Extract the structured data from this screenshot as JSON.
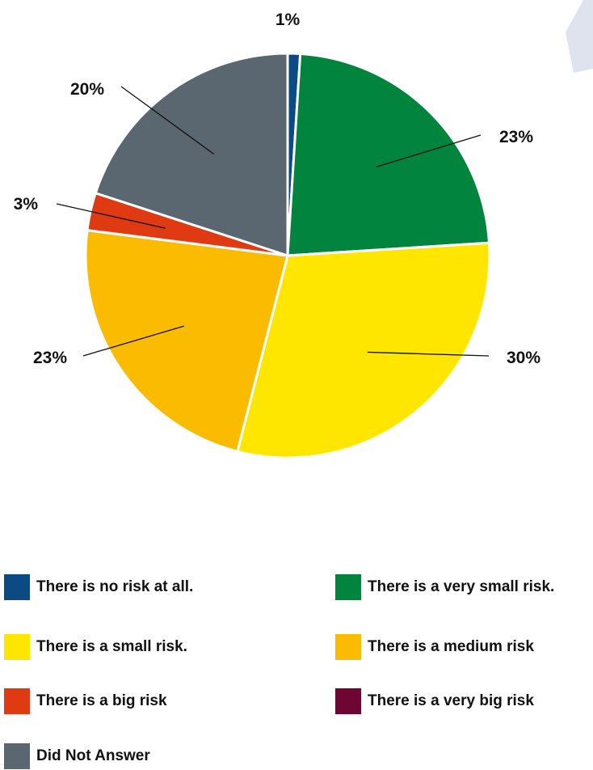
{
  "chart_data": {
    "type": "pie",
    "title": "",
    "start_angle_deg": 0,
    "direction": "clockwise",
    "slices": [
      {
        "label": "There is no risk at all.",
        "value": 1,
        "display": "1%",
        "color": "#0b4a82"
      },
      {
        "label": "There is a very small risk.",
        "value": 23,
        "display": "23%",
        "color": "#01843d"
      },
      {
        "label": "There is a small risk.",
        "value": 30,
        "display": "30%",
        "color": "#ffe600"
      },
      {
        "label": "There is a medium risk",
        "value": 23,
        "display": "23%",
        "color": "#fbbb00"
      },
      {
        "label": "There is a big risk",
        "value": 3,
        "display": "3%",
        "color": "#e03a12"
      },
      {
        "label": "There is a very big risk",
        "value": 0,
        "display": "",
        "color": "#6e0533"
      },
      {
        "label": "Did Not Answer",
        "value": 20,
        "display": "20%",
        "color": "#5a6670"
      }
    ],
    "legend": [
      "There is no risk at all.",
      "There is a very small risk.",
      "There is a small risk.",
      "There is a medium risk",
      "There is a big risk",
      "There is a very big risk",
      "Did Not Answer"
    ],
    "legend_position": "bottom"
  },
  "colors": {
    "background": "#ffffff",
    "separator": "#ffffff",
    "leader_line": "#111111",
    "corner_decoration": "#dfe3ee"
  }
}
